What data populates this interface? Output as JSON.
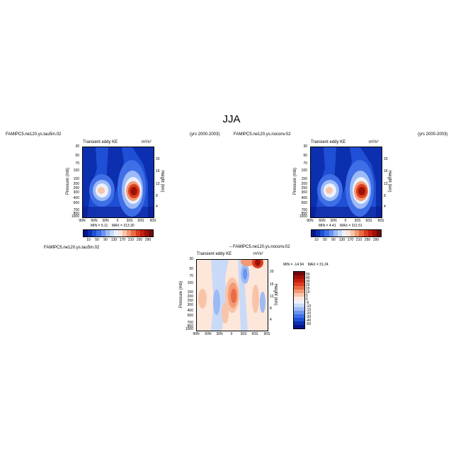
{
  "main_title": "JJA",
  "panels": [
    {
      "case_label": "FAMIPC5.ne120.ys.tau5m.02",
      "years_label": "(yrs 2000-2003)",
      "field_title": "Transient eddy KE",
      "units": "m²/s²",
      "min_label": "MIN =",
      "min_value": "5.11",
      "max_label": "MAX =",
      "max_value": "313.30"
    },
    {
      "case_label": "FAMIPC5.ne120.ys.noconv.02",
      "years_label": "(yrs 2000-2003)",
      "field_title": "Transient eddy KE",
      "units": "m²/s²",
      "min_label": "MIN =",
      "min_value": "4.41",
      "max_label": "MAX =",
      "max_value": "311.51"
    },
    {
      "case_label": "FAMIPC5.ne120.ys.tau5m.02",
      "minus_case_label": "– FAMIPC5.ne120.ys.noconv.02",
      "field_title": "Transient eddy KE",
      "units": "m²/s²",
      "min_label": "MIN =",
      "min_value": "-14.94",
      "max_label": "MAX =",
      "max_value": "31.24"
    }
  ],
  "axes": {
    "ylabel": "Pressure (mb)",
    "y2label": "Height (km)",
    "xticks": [
      "90N",
      "60N",
      "30N",
      "0",
      "30S",
      "60S",
      "90S"
    ],
    "yticks": [
      "30",
      "50",
      "70",
      "100",
      "150",
      "200",
      "250",
      "300",
      "400",
      "500",
      "700",
      "850",
      "925",
      "1000"
    ],
    "y2ticks": [
      "20",
      "16",
      "12",
      "8",
      "4"
    ],
    "colors": {
      "text": "#000000"
    }
  },
  "colorbar_abs": {
    "labels": [
      "10",
      "50",
      "90",
      "130",
      "170",
      "210",
      "250",
      "290"
    ],
    "colors": [
      "#08158a",
      "#0c2fb0",
      "#1f4fd4",
      "#3f6fe6",
      "#6a94f0",
      "#9cbaf6",
      "#c8daf8",
      "#ebf1fb",
      "#fde6da",
      "#f8c4a8",
      "#f39a74",
      "#ea6a44",
      "#dc3d20",
      "#c41f0e",
      "#9e1206",
      "#72080a"
    ]
  },
  "colorbar_diff": {
    "labels": [
      "50",
      "40",
      "30",
      "20",
      "15",
      "10",
      "5",
      "0",
      "-5",
      "-10",
      "-15",
      "-20",
      "-30",
      "-40",
      "-50"
    ],
    "colors": [
      "#72080a",
      "#9e1206",
      "#c41f0e",
      "#dc3d20",
      "#ea6a44",
      "#f39a74",
      "#f8c4a8",
      "#fde6da",
      "#ebf1fb",
      "#c8daf8",
      "#9cbaf6",
      "#6a94f0",
      "#3f6fe6",
      "#1f4fd4",
      "#0c2fb0",
      "#08158a"
    ]
  },
  "chart_data": [
    {
      "type": "heatmap",
      "title": "Transient eddy KE",
      "xlabel": "",
      "ylabel": "Pressure (mb)",
      "xlim": [
        90,
        -90
      ],
      "ylim": [
        1000,
        30
      ],
      "yscale": "log",
      "range": [
        5.11,
        313.3
      ],
      "features": [
        {
          "lat": 71,
          "p": 265,
          "value": 140
        },
        {
          "lat": -43,
          "p": 255,
          "value": 310
        }
      ]
    },
    {
      "type": "heatmap",
      "title": "Transient eddy KE",
      "xlabel": "",
      "ylabel": "Pressure (mb)",
      "xlim": [
        90,
        -90
      ],
      "ylim": [
        1000,
        30
      ],
      "yscale": "log",
      "range": [
        4.41,
        311.51
      ],
      "features": [
        {
          "lat": 71,
          "p": 265,
          "value": 145
        },
        {
          "lat": -43,
          "p": 255,
          "value": 308
        }
      ]
    },
    {
      "type": "heatmap",
      "title": "Transient eddy KE",
      "xlabel": "",
      "ylabel": "Pressure (mb)",
      "xlim": [
        90,
        -90
      ],
      "ylim": [
        1000,
        30
      ],
      "yscale": "log",
      "range": [
        -14.94,
        31.24
      ],
      "features": [
        {
          "lat": 3,
          "p": 200,
          "value": 30
        },
        {
          "lat": -35,
          "p": 35,
          "value": 28
        },
        {
          "lat": -10,
          "p": 60,
          "value": -12
        },
        {
          "lat": 35,
          "p": 90,
          "value": -10
        },
        {
          "lat": 78,
          "p": 250,
          "value": 10
        }
      ]
    }
  ]
}
